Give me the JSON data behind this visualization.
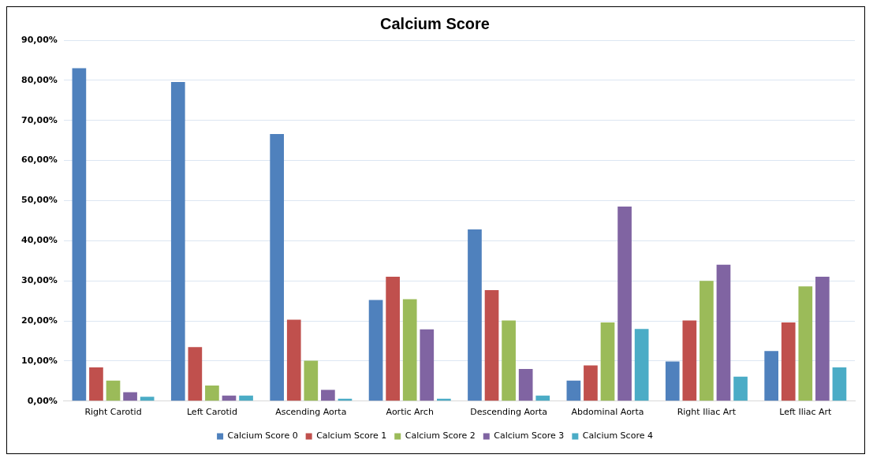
{
  "chart_data": {
    "type": "bar",
    "title": "Calcium Score",
    "categories": [
      "Right Carotid",
      "Left Carotid",
      "Ascending Aorta",
      "Aortic Arch",
      "Descending Aorta",
      "Abdominal Aorta",
      "Right Iliac Art",
      "Left Iliac Art"
    ],
    "series": [
      {
        "name": "Calcium Score 0",
        "color": "#4f81bd",
        "values": [
          83.0,
          79.6,
          66.6,
          25.2,
          42.8,
          5.1,
          9.9,
          12.5
        ]
      },
      {
        "name": "Calcium Score 1",
        "color": "#c0504d",
        "values": [
          8.4,
          13.5,
          20.3,
          31.0,
          27.7,
          8.9,
          20.1,
          19.6
        ]
      },
      {
        "name": "Calcium Score 2",
        "color": "#9bbb59",
        "values": [
          5.1,
          3.9,
          10.1,
          25.4,
          20.1,
          19.6,
          30.0,
          28.6
        ]
      },
      {
        "name": "Calcium Score 3",
        "color": "#8064a2",
        "values": [
          2.2,
          1.4,
          2.8,
          17.9,
          8.0,
          48.5,
          34.0,
          31.0
        ]
      },
      {
        "name": "Calcium Score 4",
        "color": "#4bacc6",
        "values": [
          1.1,
          1.4,
          0.6,
          0.6,
          1.4,
          18.0,
          6.1,
          8.4
        ]
      }
    ],
    "ylim": [
      0,
      90
    ],
    "yticks": [
      {
        "value": 0,
        "label": "0,00%"
      },
      {
        "value": 10,
        "label": "10,00%"
      },
      {
        "value": 20,
        "label": "20,00%"
      },
      {
        "value": 30,
        "label": "30,00%"
      },
      {
        "value": 40,
        "label": "40,00%"
      },
      {
        "value": 50,
        "label": "50,00%"
      },
      {
        "value": 60,
        "label": "60,00%"
      },
      {
        "value": 70,
        "label": "70,00%"
      },
      {
        "value": 80,
        "label": "80,00%"
      },
      {
        "value": 90,
        "label": "90,00%"
      }
    ],
    "grid": "y",
    "legend": "bottom"
  }
}
